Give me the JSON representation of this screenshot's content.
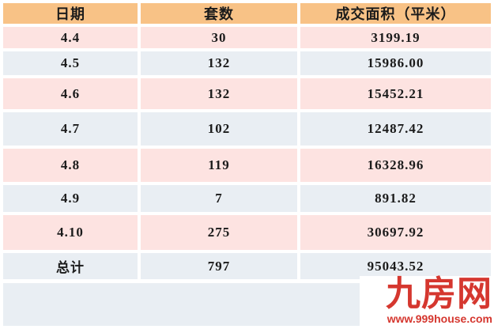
{
  "table": {
    "headers": [
      "日期",
      "套数",
      "成交面积（平米）"
    ],
    "rows": [
      [
        "4.4",
        "30",
        "3199.19"
      ],
      [
        "4.5",
        "132",
        "15986.00"
      ],
      [
        "4.6",
        "132",
        "15452.21"
      ],
      [
        "4.7",
        "102",
        "12487.42"
      ],
      [
        "4.8",
        "119",
        "16328.96"
      ],
      [
        "4.9",
        "7",
        "891.82"
      ],
      [
        "4.10",
        "275",
        "30697.92"
      ],
      [
        "总计",
        "797",
        "95043.52"
      ]
    ]
  },
  "chart_data": {
    "type": "table",
    "title": "",
    "columns": [
      "日期",
      "套数",
      "成交面积（平米）"
    ],
    "rows": [
      [
        "4.4",
        30,
        3199.19
      ],
      [
        "4.5",
        132,
        15986.0
      ],
      [
        "4.6",
        132,
        15452.21
      ],
      [
        "4.7",
        102,
        12487.42
      ],
      [
        "4.8",
        119,
        16328.96
      ],
      [
        "4.9",
        7,
        891.82
      ],
      [
        "4.10",
        275,
        30697.92
      ]
    ],
    "total_row": [
      "总计",
      797,
      95043.52
    ]
  },
  "watermark": {
    "brand": "九房网",
    "url": "www.999house.com"
  },
  "colors": {
    "header_bg": "#f8c286",
    "row_pink": "#fde3e1",
    "row_blue_gray": "#e9eef3",
    "text": "#1b1b1b",
    "brand_red": "#d5372f",
    "background": "#ffffff"
  }
}
